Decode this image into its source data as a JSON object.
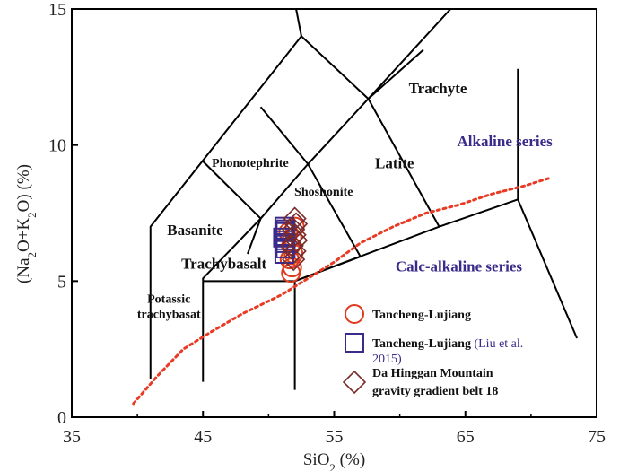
{
  "chart_data": {
    "type": "scatter",
    "xlabel": "SiO2 (%)",
    "ylabel": "(Na2O+K2O) (%)",
    "xlim": [
      35,
      75
    ],
    "ylim": [
      0,
      15
    ],
    "x_ticks": [
      "35",
      "45",
      "55",
      "65",
      "75"
    ],
    "y_ticks": [
      "0",
      "5",
      "10",
      "15"
    ],
    "xlabel_parts": {
      "pre": "SiO",
      "sub": "2",
      "post": " (%)"
    },
    "ylabel_parts": {
      "a": "(Na",
      "sub1": "2",
      "b": "O+K",
      "sub2": "2",
      "c": "O) (%)"
    },
    "field_labels": [
      {
        "text": "Trachyte",
        "x": 62.9,
        "y": 11.9,
        "style": "bold"
      },
      {
        "text": "Latite",
        "x": 59.6,
        "y": 9.15,
        "style": "bold"
      },
      {
        "text": "Phonotephrite",
        "x": 48.6,
        "y": 9.2,
        "style": "small"
      },
      {
        "text": "Shoshonite",
        "x": 54.2,
        "y": 8.15,
        "style": "small"
      },
      {
        "text": "Basanite",
        "x": 44.4,
        "y": 6.7,
        "style": "bold"
      },
      {
        "text": "Trachybasalt",
        "x": 46.6,
        "y": 5.45,
        "style": "bold"
      },
      {
        "text": "Potassic",
        "x": 42.4,
        "y": 4.2,
        "style": "small"
      },
      {
        "text": "trachybasat",
        "x": 42.4,
        "y": 3.65,
        "style": "small"
      }
    ],
    "series_labels": [
      {
        "text": "Alkaline series",
        "x": 68.0,
        "y": 9.95
      },
      {
        "text": "Calc-alkaline series",
        "x": 64.5,
        "y": 5.35
      }
    ],
    "boundaries": [
      [
        [
          41,
          1.4
        ],
        [
          41,
          7
        ],
        [
          52.5,
          14
        ],
        [
          57.6,
          11.7
        ],
        [
          63,
          7
        ],
        [
          69,
          8
        ],
        [
          73.5,
          2.9
        ]
      ],
      [
        [
          52.5,
          14
        ],
        [
          52.1,
          15
        ]
      ],
      [
        [
          57.6,
          11.7
        ],
        [
          61.8,
          13.5
        ]
      ],
      [
        [
          57.6,
          11.7
        ],
        [
          69,
          17.7
        ]
      ],
      [
        [
          45,
          1.3
        ],
        [
          45,
          5
        ]
      ],
      [
        [
          45,
          5
        ],
        [
          45,
          5.1
        ],
        [
          49.4,
          7.3
        ],
        [
          53,
          9.3
        ],
        [
          57.6,
          11.7
        ]
      ],
      [
        [
          45,
          5
        ],
        [
          52,
          5
        ],
        [
          63,
          7
        ]
      ],
      [
        [
          52,
          1
        ],
        [
          52,
          5
        ],
        [
          57,
          5.9
        ],
        [
          53,
          9.3
        ],
        [
          49.4,
          11.4
        ]
      ],
      [
        [
          49.4,
          7.3
        ],
        [
          45,
          9.4
        ]
      ],
      [
        [
          49.4,
          7.3
        ],
        [
          48.4,
          6
        ]
      ],
      [
        [
          69,
          8
        ],
        [
          69,
          12.8
        ]
      ]
    ],
    "alkaline_boundary": {
      "x": [
        39.7,
        41.5,
        43.5,
        45.5,
        48,
        51,
        53,
        55,
        57,
        59.5,
        62,
        64.5,
        67,
        69.5,
        71.5
      ],
      "y": [
        0.5,
        1.5,
        2.5,
        3.1,
        3.8,
        4.5,
        5.1,
        5.7,
        6.4,
        7.0,
        7.5,
        7.8,
        8.2,
        8.5,
        8.8
      ]
    },
    "series": [
      {
        "name": "Tancheng-Lujiang",
        "marker": "circle",
        "color": "#e03a1e",
        "x": [
          51.7,
          51.8,
          51.6,
          51.9,
          51.7,
          51.8,
          51.5,
          52.0
        ],
        "y": [
          5.3,
          5.5,
          5.8,
          6.0,
          6.3,
          6.6,
          6.8,
          7.0
        ]
      },
      {
        "name": "Tancheng-Lujiang",
        "legend_cite": "(Liu et al. 2015)",
        "marker": "square",
        "color": "#3a2a8a",
        "x": [
          51.2,
          51.3,
          51.2,
          51.3,
          51.1,
          51.2,
          51.3,
          51.2
        ],
        "y": [
          6.0,
          6.2,
          6.4,
          6.5,
          6.6,
          6.8,
          6.9,
          7.0
        ]
      },
      {
        "name": "Da Hinggan Mountain gravity gradient belt 18",
        "marker": "diamond",
        "color": "#7a2a2a",
        "x": [
          51.9,
          52.0,
          51.8,
          52.1,
          52.0,
          51.9,
          52.1,
          52.0
        ],
        "y": [
          5.8,
          6.1,
          6.3,
          6.5,
          6.7,
          6.9,
          7.1,
          7.3
        ]
      }
    ],
    "legend": {
      "position": "bottom-right",
      "entries": [
        {
          "lines": [
            "Tancheng-Lujiang"
          ]
        },
        {
          "lines": [
            "Tancheng-Lujiang (Liu et al.",
            "2015)"
          ]
        },
        {
          "lines": [
            "Da Hinggan Mountain",
            "gravity gradient belt 18"
          ]
        }
      ]
    },
    "grid": false
  }
}
